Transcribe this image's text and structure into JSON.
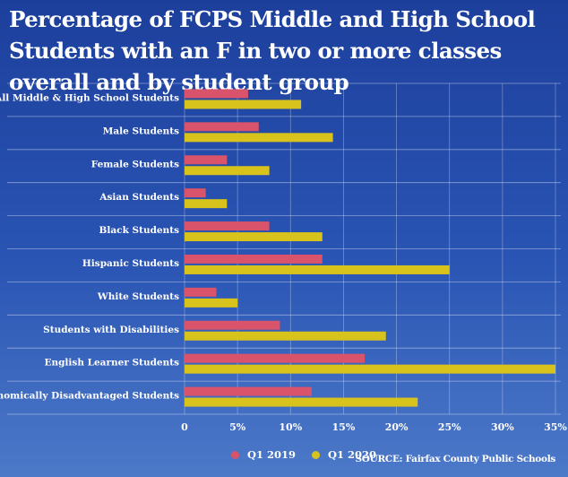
{
  "chart_data": {
    "type": "bar",
    "orientation": "horizontal",
    "title": "Percentage of FCPS Middle and High School Students with an F in two or more classes  overall and by student group",
    "categories": [
      "All Middle & High School Students",
      "Male Students",
      "Female Students",
      "Asian Students",
      "Black Students",
      "Hispanic Students",
      "White Students",
      "Students with Disabilities",
      "English Learner Students",
      "Economically Disadvantaged Students"
    ],
    "series": [
      {
        "name": "Q1 2019",
        "color": "#d9536a",
        "values": [
          6,
          7,
          4,
          2,
          8,
          13,
          3,
          9,
          17,
          12
        ]
      },
      {
        "name": "Q1 2020",
        "color": "#d8c21c",
        "values": [
          11,
          14,
          8,
          4,
          13,
          25,
          5,
          19,
          35,
          22
        ]
      }
    ],
    "xlim": [
      0,
      35
    ],
    "xticks": [
      0,
      5,
      10,
      15,
      20,
      25,
      30,
      35
    ],
    "xtick_labels": [
      "0",
      "5%",
      "10%",
      "15%",
      "20%",
      "25%",
      "30%",
      "35%"
    ],
    "grid": true,
    "legend_position": "bottom"
  },
  "source": "SOURCE: Fairfax County Public Schools"
}
